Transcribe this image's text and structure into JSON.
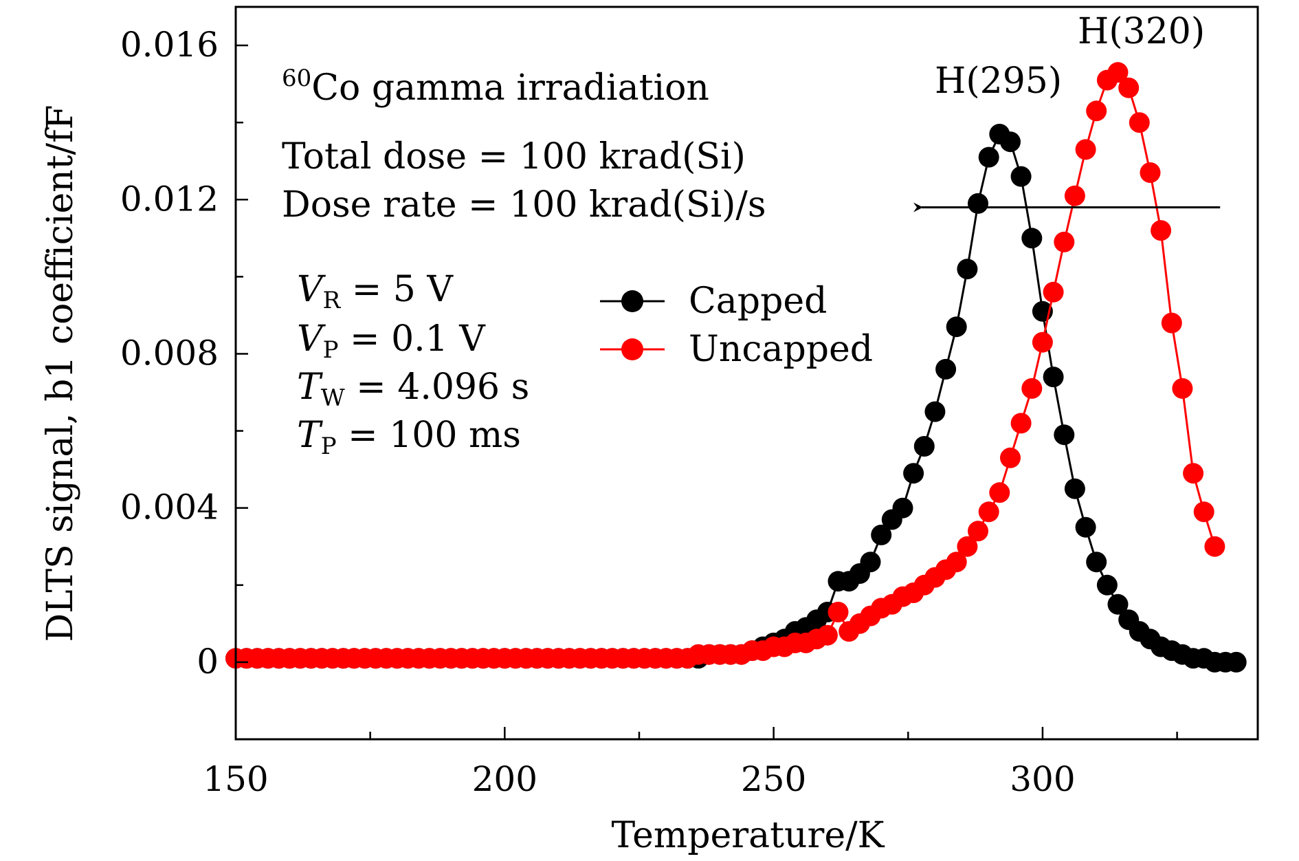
{
  "chart_data": {
    "type": "scatter",
    "xlabel": "Temperature/K",
    "ylabel": "DLTS signal, b1 coefficient/fF",
    "xlim": [
      150,
      340
    ],
    "ylim": [
      -0.002,
      0.017
    ],
    "xticks": [
      150,
      200,
      250,
      300
    ],
    "xtick_labels": [
      "150",
      "200",
      "250",
      "300"
    ],
    "yticks": [
      0,
      0.004,
      0.008,
      0.012,
      0.016
    ],
    "ytick_labels": [
      "0",
      "0.004",
      "0.008",
      "0.012",
      "0.016"
    ],
    "grid": false,
    "legend": {
      "position": "center",
      "items": [
        "Capped",
        "Uncapped"
      ]
    },
    "annotations": {
      "title_sup": "60",
      "title_rest": "Co gamma irradiation",
      "dose_line": "Total dose = 100 krad(Si)",
      "rate_line": "Dose rate = 100 krad(Si)/s",
      "params": [
        {
          "sym": "V",
          "sub": "R",
          "rest": " = 5 V"
        },
        {
          "sym": "V",
          "sub": "P",
          "rest": " = 0.1 V"
        },
        {
          "sym": "T",
          "sub": "W",
          "rest": " = 4.096 s"
        },
        {
          "sym": "T",
          "sub": "P",
          "rest": " = 100 ms"
        }
      ],
      "peak1": "H(295)",
      "peak2": "H(320)",
      "arrow": {
        "from_x": 333,
        "to_x": 277,
        "y": 0.0118
      }
    },
    "series": [
      {
        "name": "Capped",
        "color": "#000000",
        "points": [
          [
            150,
            0.0001
          ],
          [
            152,
            0.0001
          ],
          [
            154,
            0.0001
          ],
          [
            156,
            0.0001
          ],
          [
            158,
            0.0001
          ],
          [
            160,
            0.0001
          ],
          [
            162,
            0.0001
          ],
          [
            164,
            0.0001
          ],
          [
            166,
            0.0001
          ],
          [
            168,
            0.0001
          ],
          [
            170,
            0.0001
          ],
          [
            172,
            0.0001
          ],
          [
            174,
            0.0001
          ],
          [
            176,
            0.0001
          ],
          [
            178,
            0.0001
          ],
          [
            180,
            0.0001
          ],
          [
            182,
            0.0001
          ],
          [
            184,
            0.0001
          ],
          [
            186,
            0.0001
          ],
          [
            188,
            0.0001
          ],
          [
            190,
            0.0001
          ],
          [
            192,
            0.0001
          ],
          [
            194,
            0.0001
          ],
          [
            196,
            0.0001
          ],
          [
            198,
            0.0001
          ],
          [
            200,
            0.0001
          ],
          [
            202,
            0.0001
          ],
          [
            204,
            0.0001
          ],
          [
            206,
            0.0001
          ],
          [
            208,
            0.0001
          ],
          [
            210,
            0.0001
          ],
          [
            212,
            0.0001
          ],
          [
            214,
            0.0001
          ],
          [
            216,
            0.0001
          ],
          [
            218,
            0.0001
          ],
          [
            220,
            0.0001
          ],
          [
            222,
            0.0001
          ],
          [
            224,
            0.0001
          ],
          [
            226,
            0.0001
          ],
          [
            228,
            0.0001
          ],
          [
            230,
            0.0001
          ],
          [
            232,
            0.0001
          ],
          [
            234,
            0.0001
          ],
          [
            236,
            0.0001
          ],
          [
            238,
            0.0002
          ],
          [
            240,
            0.0002
          ],
          [
            242,
            0.0002
          ],
          [
            244,
            0.0002
          ],
          [
            246,
            0.0003
          ],
          [
            248,
            0.0004
          ],
          [
            250,
            0.0005
          ],
          [
            252,
            0.0006
          ],
          [
            254,
            0.0008
          ],
          [
            256,
            0.0009
          ],
          [
            258,
            0.0011
          ],
          [
            260,
            0.0013
          ],
          [
            262,
            0.0021
          ],
          [
            264,
            0.0021
          ],
          [
            266,
            0.0023
          ],
          [
            268,
            0.0026
          ],
          [
            270,
            0.0033
          ],
          [
            272,
            0.0037
          ],
          [
            274,
            0.004
          ],
          [
            276,
            0.0049
          ],
          [
            278,
            0.0056
          ],
          [
            280,
            0.0065
          ],
          [
            282,
            0.0076
          ],
          [
            284,
            0.0087
          ],
          [
            286,
            0.0102
          ],
          [
            288,
            0.0119
          ],
          [
            290,
            0.0131
          ],
          [
            292,
            0.0137
          ],
          [
            294,
            0.0135
          ],
          [
            296,
            0.0126
          ],
          [
            298,
            0.011
          ],
          [
            300,
            0.0091
          ],
          [
            302,
            0.0074
          ],
          [
            304,
            0.0059
          ],
          [
            306,
            0.0045
          ],
          [
            308,
            0.0035
          ],
          [
            310,
            0.0026
          ],
          [
            312,
            0.002
          ],
          [
            314,
            0.0015
          ],
          [
            316,
            0.0011
          ],
          [
            318,
            0.0008
          ],
          [
            320,
            0.0006
          ],
          [
            322,
            0.0004
          ],
          [
            324,
            0.0003
          ],
          [
            326,
            0.0002
          ],
          [
            328,
            0.0001
          ],
          [
            330,
            0.0001
          ],
          [
            332,
            0.0
          ],
          [
            334,
            0.0
          ],
          [
            336,
            0.0
          ]
        ]
      },
      {
        "name": "Uncapped",
        "color": "#ff0000",
        "points": [
          [
            150,
            0.0001
          ],
          [
            152,
            0.0001
          ],
          [
            154,
            0.0001
          ],
          [
            156,
            0.0001
          ],
          [
            158,
            0.0001
          ],
          [
            160,
            0.0001
          ],
          [
            162,
            0.0001
          ],
          [
            164,
            0.0001
          ],
          [
            166,
            0.0001
          ],
          [
            168,
            0.0001
          ],
          [
            170,
            0.0001
          ],
          [
            172,
            0.0001
          ],
          [
            174,
            0.0001
          ],
          [
            176,
            0.0001
          ],
          [
            178,
            0.0001
          ],
          [
            180,
            0.0001
          ],
          [
            182,
            0.0001
          ],
          [
            184,
            0.0001
          ],
          [
            186,
            0.0001
          ],
          [
            188,
            0.0001
          ],
          [
            190,
            0.0001
          ],
          [
            192,
            0.0001
          ],
          [
            194,
            0.0001
          ],
          [
            196,
            0.0001
          ],
          [
            198,
            0.0001
          ],
          [
            200,
            0.0001
          ],
          [
            202,
            0.0001
          ],
          [
            204,
            0.0001
          ],
          [
            206,
            0.0001
          ],
          [
            208,
            0.0001
          ],
          [
            210,
            0.0001
          ],
          [
            212,
            0.0001
          ],
          [
            214,
            0.0001
          ],
          [
            216,
            0.0001
          ],
          [
            218,
            0.0001
          ],
          [
            220,
            0.0001
          ],
          [
            222,
            0.0001
          ],
          [
            224,
            0.0001
          ],
          [
            226,
            0.0001
          ],
          [
            228,
            0.0001
          ],
          [
            230,
            0.0001
          ],
          [
            232,
            0.0001
          ],
          [
            234,
            0.0001
          ],
          [
            236,
            0.0002
          ],
          [
            238,
            0.0002
          ],
          [
            240,
            0.0002
          ],
          [
            242,
            0.0002
          ],
          [
            244,
            0.0002
          ],
          [
            246,
            0.0003
          ],
          [
            248,
            0.0003
          ],
          [
            250,
            0.0004
          ],
          [
            252,
            0.0004
          ],
          [
            254,
            0.0005
          ],
          [
            256,
            0.0005
          ],
          [
            258,
            0.0006
          ],
          [
            260,
            0.0007
          ],
          [
            262,
            0.0013
          ],
          [
            264,
            0.0008
          ],
          [
            266,
            0.001
          ],
          [
            268,
            0.0012
          ],
          [
            270,
            0.0014
          ],
          [
            272,
            0.0015
          ],
          [
            274,
            0.0017
          ],
          [
            276,
            0.0018
          ],
          [
            278,
            0.002
          ],
          [
            280,
            0.0022
          ],
          [
            282,
            0.0024
          ],
          [
            284,
            0.0026
          ],
          [
            286,
            0.003
          ],
          [
            288,
            0.0034
          ],
          [
            290,
            0.0039
          ],
          [
            292,
            0.0044
          ],
          [
            294,
            0.0053
          ],
          [
            296,
            0.0062
          ],
          [
            298,
            0.0071
          ],
          [
            300,
            0.0083
          ],
          [
            302,
            0.0096
          ],
          [
            304,
            0.0109
          ],
          [
            306,
            0.0121
          ],
          [
            308,
            0.0133
          ],
          [
            310,
            0.0143
          ],
          [
            312,
            0.0151
          ],
          [
            314,
            0.0153
          ],
          [
            316,
            0.0149
          ],
          [
            318,
            0.014
          ],
          [
            320,
            0.0127
          ],
          [
            322,
            0.0112
          ],
          [
            324,
            0.0088
          ],
          [
            326,
            0.0071
          ],
          [
            328,
            0.0049
          ],
          [
            330,
            0.0039
          ],
          [
            332,
            0.003
          ]
        ]
      }
    ]
  }
}
